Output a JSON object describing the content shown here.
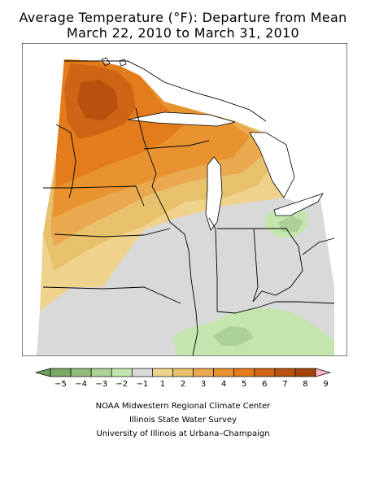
{
  "title": {
    "line1": "Average Temperature (°F): Departure from Mean",
    "line2": "March 22, 2010 to March 31, 2010"
  },
  "legend": {
    "min_color": "#6fa05a",
    "max_color": "#ffb6c1",
    "bins": [
      {
        "label": "-5",
        "color": "#7aa865"
      },
      {
        "label": "-4",
        "color": "#93bb7c"
      },
      {
        "label": "-3",
        "color": "#acd196"
      },
      {
        "label": "-2",
        "color": "#c4e6ae"
      },
      {
        "label": "-1",
        "color": "#d9d9d9"
      },
      {
        "label": "1",
        "color": "#efd38d"
      },
      {
        "label": "2",
        "color": "#e8c16c"
      },
      {
        "label": "3",
        "color": "#eaa94f"
      },
      {
        "label": "4",
        "color": "#e89330"
      },
      {
        "label": "5",
        "color": "#e27c1c"
      },
      {
        "label": "6",
        "color": "#cf6514"
      },
      {
        "label": "7",
        "color": "#b9510e"
      },
      {
        "label": "8",
        "color": "#a54309"
      },
      {
        "label": "9",
        "color": ""
      }
    ]
  },
  "credits": {
    "line1": "NOAA Midwestern Regional Climate Center",
    "line2": "Illinois State Water Survey",
    "line3": "University of Illinois at Urbana–Champaign"
  }
}
